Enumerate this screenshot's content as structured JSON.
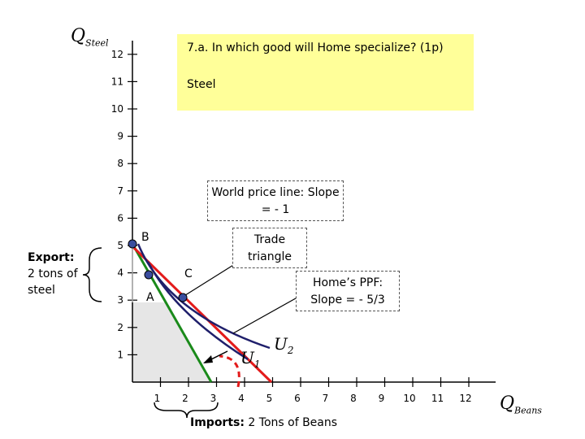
{
  "question": {
    "text": "7.a. In which good will Home specialize? (1p)",
    "answer": "Steel"
  },
  "axes": {
    "y_title": "Q",
    "y_sub": "Steel",
    "x_title": "Q",
    "x_sub": "Beans",
    "y_ticks": [
      "1",
      "2",
      "3",
      "4",
      "5",
      "6",
      "7",
      "8",
      "9",
      "10",
      "11",
      "12"
    ],
    "x_ticks": [
      "1",
      "2",
      "3",
      "4",
      "5",
      "6",
      "7",
      "8",
      "9",
      "10",
      "11",
      "12"
    ]
  },
  "annotations": {
    "world_price_line": "World price line: Slope = - 1",
    "trade_triangle": "Trade triangle",
    "home_ppf": "Home’s PPF: Slope = - 5/3",
    "export_bold": "Export:",
    "export_rest": " 2 tons of steel",
    "imports_bold": "Imports:",
    "imports_rest": " 2 Tons of Beans"
  },
  "points": {
    "A": "A",
    "B": "B",
    "C": "C"
  },
  "curves": {
    "U1": "U",
    "U1_sub": "1",
    "U2": "U",
    "U2_sub": "2"
  },
  "colors": {
    "ppf": "#1a8a1a",
    "price_line": "#e31b1b",
    "indifference": "#1f1f6b",
    "highlight_box": "#ffff99",
    "shade": "#e6e6e6",
    "point_fill": "#3a4d9e"
  }
}
